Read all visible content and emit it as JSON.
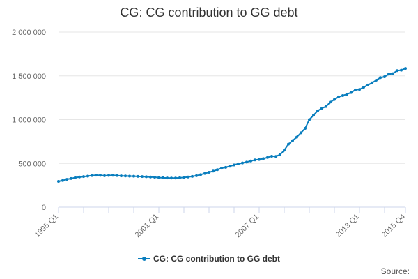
{
  "title": "CG: CG contribution to GG debt",
  "source_label": "Source:",
  "colors": {
    "series": "#0a7ebe",
    "grid": "#e6e6e6",
    "axis": "#ccd6eb"
  },
  "chart_data": {
    "type": "line",
    "title": "CG: CG contribution to GG debt",
    "xlabel": "",
    "ylabel": "",
    "ylim": [
      0,
      2000000
    ],
    "y_ticks": [
      0,
      500000,
      1000000,
      1500000,
      2000000
    ],
    "y_tick_labels": [
      "0",
      "500 000",
      "1 000 000",
      "1 500 000",
      "2 000 000"
    ],
    "x_tick_labels": [
      "1995 Q1",
      "2001 Q1",
      "2007 Q1",
      "2013 Q1",
      "2015 Q4"
    ],
    "x_tick_label_indices": [
      0,
      24,
      48,
      72,
      83
    ],
    "x_tick_mark_indices": [
      0,
      6,
      12,
      18,
      24,
      30,
      36,
      42,
      48,
      54,
      60,
      66,
      72,
      78,
      83
    ],
    "grid": true,
    "legend_position": "bottom",
    "series": [
      {
        "name": "CG: CG contribution to GG debt",
        "x": [
          "1995 Q1",
          "1995 Q2",
          "1995 Q3",
          "1995 Q4",
          "1996 Q1",
          "1996 Q2",
          "1996 Q3",
          "1996 Q4",
          "1997 Q1",
          "1997 Q2",
          "1997 Q3",
          "1997 Q4",
          "1998 Q1",
          "1998 Q2",
          "1998 Q3",
          "1998 Q4",
          "1999 Q1",
          "1999 Q2",
          "1999 Q3",
          "1999 Q4",
          "2000 Q1",
          "2000 Q2",
          "2000 Q3",
          "2000 Q4",
          "2001 Q1",
          "2001 Q2",
          "2001 Q3",
          "2001 Q4",
          "2002 Q1",
          "2002 Q2",
          "2002 Q3",
          "2002 Q4",
          "2003 Q1",
          "2003 Q2",
          "2003 Q3",
          "2003 Q4",
          "2004 Q1",
          "2004 Q2",
          "2004 Q3",
          "2004 Q4",
          "2005 Q1",
          "2005 Q2",
          "2005 Q3",
          "2005 Q4",
          "2006 Q1",
          "2006 Q2",
          "2006 Q3",
          "2006 Q4",
          "2007 Q1",
          "2007 Q2",
          "2007 Q3",
          "2007 Q4",
          "2008 Q1",
          "2008 Q2",
          "2008 Q3",
          "2008 Q4",
          "2009 Q1",
          "2009 Q2",
          "2009 Q3",
          "2009 Q4",
          "2010 Q1",
          "2010 Q2",
          "2010 Q3",
          "2010 Q4",
          "2011 Q1",
          "2011 Q2",
          "2011 Q3",
          "2011 Q4",
          "2012 Q1",
          "2012 Q2",
          "2012 Q3",
          "2012 Q4",
          "2013 Q1",
          "2013 Q2",
          "2013 Q3",
          "2013 Q4",
          "2014 Q1",
          "2014 Q2",
          "2014 Q3",
          "2014 Q4",
          "2015 Q1",
          "2015 Q2",
          "2015 Q3",
          "2015 Q4"
        ],
        "values": [
          295000,
          305000,
          318000,
          328000,
          338000,
          345000,
          350000,
          355000,
          362000,
          366000,
          364000,
          360000,
          363000,
          365000,
          362000,
          358000,
          357000,
          355000,
          354000,
          352000,
          350000,
          348000,
          345000,
          343000,
          338000,
          336000,
          334000,
          333000,
          333000,
          336000,
          340000,
          345000,
          352000,
          360000,
          372000,
          385000,
          398000,
          412000,
          428000,
          445000,
          455000,
          468000,
          482000,
          495000,
          505000,
          515000,
          528000,
          540000,
          545000,
          555000,
          568000,
          582000,
          580000,
          600000,
          650000,
          720000,
          760000,
          800000,
          850000,
          900000,
          1000000,
          1050000,
          1100000,
          1130000,
          1150000,
          1200000,
          1230000,
          1260000,
          1275000,
          1290000,
          1310000,
          1340000,
          1345000,
          1370000,
          1395000,
          1420000,
          1450000,
          1480000,
          1490000,
          1520000,
          1525000,
          1560000,
          1565000,
          1585000
        ]
      }
    ]
  }
}
